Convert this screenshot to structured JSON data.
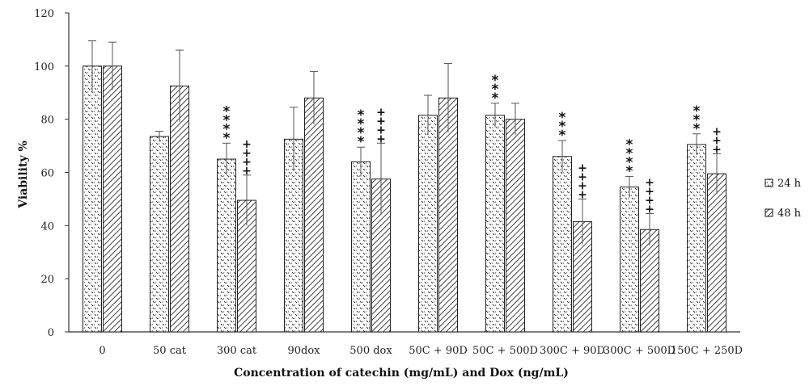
{
  "chart_data": {
    "type": "bar",
    "title": "",
    "xlabel": "Concentration of catechin (mg/mL) and Dox (ng/mL)",
    "ylabel": "Viability %",
    "ylim": [
      0,
      120
    ],
    "yticks": [
      "0",
      "20",
      "40",
      "60",
      "80",
      "100",
      "120"
    ],
    "grid": false,
    "legend_position": "right",
    "categories": [
      "0",
      "50 cat",
      "300 cat",
      "90dox",
      "500 dox",
      "50C + 90D",
      "50C + 500D",
      "300C + 90D",
      "300C + 500D",
      "150C + 250D"
    ],
    "series": [
      {
        "name": "24 h",
        "pattern": "dotted",
        "values": [
          100,
          73.5,
          65,
          72.5,
          64,
          81.5,
          81.5,
          66,
          54.5,
          70.5
        ],
        "errors": [
          9.5,
          2,
          6,
          12,
          5.5,
          7.5,
          4.5,
          6,
          4,
          4
        ],
        "significance": [
          "",
          "",
          "****",
          "",
          "****",
          "",
          "***",
          "***",
          "****",
          "***"
        ]
      },
      {
        "name": "48 h",
        "pattern": "hatched",
        "values": [
          100,
          92.5,
          49.5,
          88,
          57.5,
          88,
          80,
          41.5,
          38.5,
          59.5
        ],
        "errors": [
          9,
          13.5,
          9.5,
          10,
          13.5,
          13,
          6,
          8.5,
          6,
          7.5
        ],
        "significance": [
          "",
          "",
          "++++",
          "",
          "++++",
          "",
          "",
          "++++",
          "++++",
          "+++"
        ]
      }
    ]
  }
}
